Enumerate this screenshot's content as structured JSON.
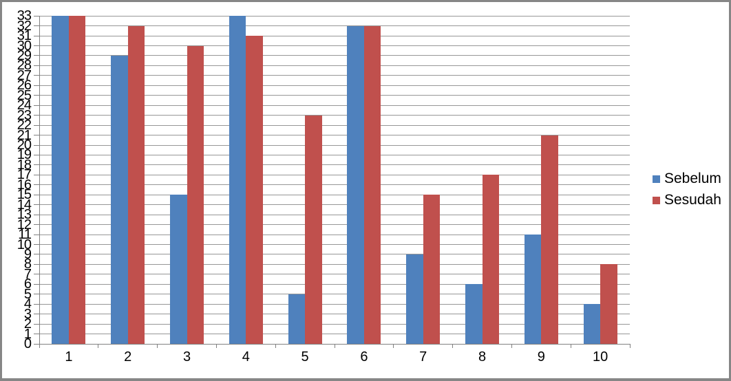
{
  "chart_data": {
    "type": "bar",
    "title": "",
    "xlabel": "",
    "ylabel": "",
    "categories": [
      "1",
      "2",
      "3",
      "4",
      "5",
      "6",
      "7",
      "8",
      "9",
      "10"
    ],
    "series": [
      {
        "name": "Sebelum",
        "color": "#4F81BD",
        "values": [
          33,
          29,
          15,
          33,
          5,
          32,
          9,
          6,
          11,
          4
        ]
      },
      {
        "name": "Sesudah",
        "color": "#C0504D",
        "values": [
          33,
          32,
          30,
          31,
          23,
          32,
          15,
          17,
          21,
          8
        ]
      }
    ],
    "ylim": [
      0,
      33
    ],
    "ytick_step": 1,
    "y_tick_labels": [
      "0",
      "1",
      "2",
      "3",
      "4",
      "5",
      "6",
      "7",
      "8",
      "9",
      "10",
      "11",
      "12",
      "13",
      "14",
      "15",
      "16",
      "17",
      "18",
      "19",
      "20",
      "21",
      "22",
      "23",
      "24",
      "25",
      "26",
      "27",
      "28",
      "29",
      "30",
      "31",
      "32",
      "33"
    ],
    "grid": true,
    "legend_position": "right"
  },
  "colors": {
    "background": "#FFFFFF",
    "gridline": "#969696",
    "axis": "#808080",
    "frame_border": "#868686",
    "text": "#000000"
  }
}
